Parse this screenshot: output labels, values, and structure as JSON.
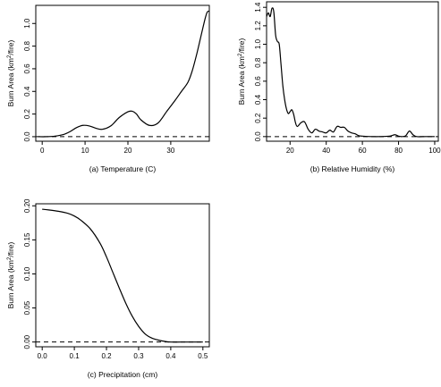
{
  "chart_data": [
    {
      "type": "line",
      "xlabel": "(a) Temperature (C)",
      "ylabel": {
        "main": "Burn Area (km",
        "sup": "2",
        "tail": "/fire)"
      },
      "xlim": [
        -1.5,
        39
      ],
      "ylim": [
        -0.04,
        1.16
      ],
      "xticks": [
        0,
        10,
        20,
        30
      ],
      "yticks": [
        0.0,
        0.2,
        0.4,
        0.6,
        0.8,
        1.0
      ],
      "ytick_labels": [
        "0.0",
        "0.2",
        "0.4",
        "0.6",
        "0.8",
        "1.0"
      ],
      "reference_line": 0,
      "series": [
        {
          "x": [
            -1,
            1,
            3,
            5,
            6.5,
            8,
            9.5,
            11,
            12.5,
            14,
            16,
            18,
            20,
            21,
            22,
            23,
            25,
            27,
            29,
            31,
            32.5,
            34,
            35,
            36,
            37,
            38,
            38.5,
            39
          ],
          "y": [
            0.0,
            0.0,
            0.005,
            0.02,
            0.045,
            0.08,
            0.1,
            0.095,
            0.075,
            0.065,
            0.095,
            0.17,
            0.22,
            0.225,
            0.2,
            0.15,
            0.1,
            0.12,
            0.22,
            0.32,
            0.4,
            0.48,
            0.58,
            0.72,
            0.88,
            1.04,
            1.1,
            1.11
          ]
        }
      ]
    },
    {
      "type": "line",
      "xlabel": "(b) Relative Humidity (%)",
      "ylabel": {
        "main": "Burn Area (km",
        "sup": "2",
        "tail": "/fire)"
      },
      "xlim": [
        7,
        102
      ],
      "ylim": [
        -0.05,
        1.46
      ],
      "xticks": [
        20,
        40,
        60,
        80,
        100
      ],
      "yticks": [
        0.0,
        0.2,
        0.4,
        0.6,
        0.8,
        1.0,
        1.2,
        1.4
      ],
      "ytick_labels": [
        "0.0",
        "0.2",
        "0.4",
        "0.6",
        "0.8",
        "1.0",
        "1.2",
        "1.4"
      ],
      "reference_line": 0,
      "series": [
        {
          "x": [
            7,
            8,
            9,
            10,
            11,
            12,
            13,
            14,
            15,
            16,
            17,
            18,
            19,
            20,
            21,
            22,
            23,
            24,
            26,
            28,
            30,
            32,
            34,
            36,
            38,
            40,
            42,
            44,
            46,
            48,
            50,
            52,
            54,
            56,
            58,
            60,
            65,
            70,
            75,
            78,
            80,
            82,
            84,
            86,
            88,
            90,
            95,
            100
          ],
          "y": [
            1.3,
            1.34,
            1.3,
            1.39,
            1.35,
            1.1,
            1.03,
            1.0,
            0.78,
            0.55,
            0.4,
            0.3,
            0.25,
            0.27,
            0.29,
            0.24,
            0.15,
            0.11,
            0.15,
            0.16,
            0.08,
            0.04,
            0.08,
            0.06,
            0.05,
            0.04,
            0.07,
            0.05,
            0.11,
            0.1,
            0.1,
            0.06,
            0.04,
            0.03,
            0.01,
            0.005,
            0.0,
            0.0,
            0.005,
            0.02,
            0.005,
            0.0,
            0.01,
            0.06,
            0.02,
            0.0,
            0.0,
            0.0
          ]
        }
      ]
    },
    {
      "type": "line",
      "xlabel": "(c) Precipitation (cm)",
      "ylabel": {
        "main": "Burn Area (km",
        "sup": "2",
        "tail": "/fire)"
      },
      "xlim": [
        -0.02,
        0.52
      ],
      "ylim": [
        -0.007,
        0.203
      ],
      "xticks": [
        0.0,
        0.1,
        0.2,
        0.3,
        0.4,
        0.5
      ],
      "xtick_labels": [
        "0.0",
        "0.1",
        "0.2",
        "0.3",
        "0.4",
        "0.5"
      ],
      "yticks": [
        0.0,
        0.05,
        0.1,
        0.15,
        0.2
      ],
      "ytick_labels": [
        "0.00",
        "0.05",
        "0.10",
        "0.15",
        "0.20"
      ],
      "reference_line": 0,
      "series": [
        {
          "x": [
            0.0,
            0.02,
            0.05,
            0.08,
            0.1,
            0.12,
            0.15,
            0.18,
            0.2,
            0.22,
            0.24,
            0.26,
            0.28,
            0.3,
            0.32,
            0.34,
            0.36,
            0.38,
            0.4,
            0.45,
            0.5
          ],
          "y": [
            0.195,
            0.194,
            0.192,
            0.189,
            0.185,
            0.179,
            0.166,
            0.145,
            0.125,
            0.102,
            0.079,
            0.057,
            0.038,
            0.023,
            0.012,
            0.006,
            0.003,
            0.001,
            0.0,
            0.0,
            0.0
          ]
        }
      ]
    }
  ]
}
